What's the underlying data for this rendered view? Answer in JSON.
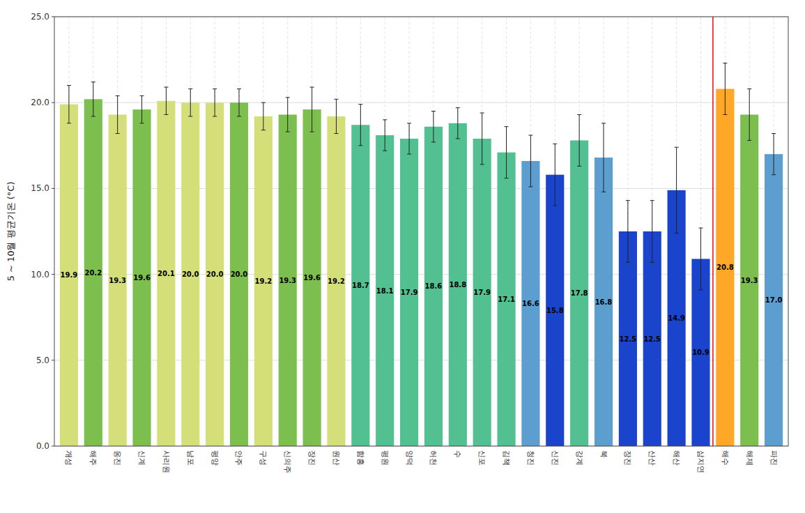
{
  "chart_data": {
    "type": "bar",
    "ylabel": "5 ~ 10월 평균기온 (°C)",
    "categories": [
      "개성",
      "해주",
      "옹진",
      "신계",
      "사리원",
      "남포",
      "평양",
      "안주",
      "구성",
      "신의주",
      "장진",
      "원산",
      "함흥",
      "평원",
      "양덕",
      "허천",
      "수",
      "신포",
      "김책",
      "청진",
      "신진",
      "강계",
      "북",
      "장진",
      "산산",
      "해산",
      "삼지연",
      "해수",
      "해제",
      "파진"
    ],
    "values": [
      19.9,
      20.2,
      19.3,
      19.6,
      20.1,
      20.0,
      20.0,
      20.0,
      19.2,
      19.3,
      19.6,
      19.2,
      18.7,
      18.1,
      17.9,
      18.6,
      18.8,
      17.9,
      17.1,
      16.6,
      15.8,
      17.8,
      16.8,
      12.5,
      12.5,
      14.9,
      10.9,
      20.8,
      19.3,
      17.0
    ],
    "value_labels": [
      "19.9",
      "20.2",
      "19.3",
      "19.6",
      "20.1",
      "20.0",
      "20.0",
      "20.0",
      "19.2",
      "19.3",
      "19.6",
      "19.2",
      "18.7",
      "18.1",
      "17.9",
      "18.6",
      "18.8",
      "17.9",
      "17.1",
      "16.6",
      "15.8",
      "17.8",
      "16.8",
      "12.5",
      "12.5",
      "14.9",
      "10.9",
      "20.8",
      "19.3",
      "17.0"
    ],
    "errors_up": [
      1.1,
      1.0,
      1.1,
      0.8,
      0.8,
      0.8,
      0.8,
      0.8,
      0.8,
      1.0,
      1.3,
      1.0,
      1.2,
      0.9,
      0.9,
      0.9,
      0.9,
      1.5,
      1.5,
      1.5,
      1.8,
      1.5,
      2.0,
      1.8,
      1.8,
      2.5,
      1.8,
      1.5,
      1.5,
      1.2
    ],
    "errors_lo": [
      1.1,
      1.0,
      1.1,
      0.8,
      0.8,
      0.8,
      0.8,
      0.8,
      0.8,
      1.0,
      1.3,
      1.0,
      1.2,
      0.9,
      0.9,
      0.9,
      0.9,
      1.5,
      1.5,
      1.5,
      1.8,
      1.5,
      2.0,
      1.8,
      1.8,
      2.5,
      1.8,
      1.5,
      1.5,
      1.2
    ],
    "colors": [
      "#d4df7a",
      "#7dbf4e",
      "#d4df7a",
      "#7dbf4e",
      "#d4df7a",
      "#d4df7a",
      "#d4df7a",
      "#7dbf4e",
      "#d4df7a",
      "#7dbf4e",
      "#7dbf4e",
      "#d4df7a",
      "#52c090",
      "#52c090",
      "#52c090",
      "#52c090",
      "#52c090",
      "#52c090",
      "#52c090",
      "#5b9ecf",
      "#1a44cc",
      "#52c090",
      "#5b9ecf",
      "#1a44cc",
      "#1a44cc",
      "#1a44cc",
      "#1a44cc",
      "#ffa726",
      "#7dbf4e",
      "#5b9ecf"
    ],
    "divider_x": 26.5,
    "ylim": [
      0,
      25
    ],
    "yticks": [
      {
        "value": 0,
        "label": "0.0"
      },
      {
        "value": 5,
        "label": "5.0"
      },
      {
        "value": 10,
        "label": "10.0"
      },
      {
        "value": 15,
        "label": "15.0"
      },
      {
        "value": 20,
        "label": "20.0"
      },
      {
        "value": 25,
        "label": "25.0"
      }
    ],
    "grid": true,
    "data_labels": true
  }
}
